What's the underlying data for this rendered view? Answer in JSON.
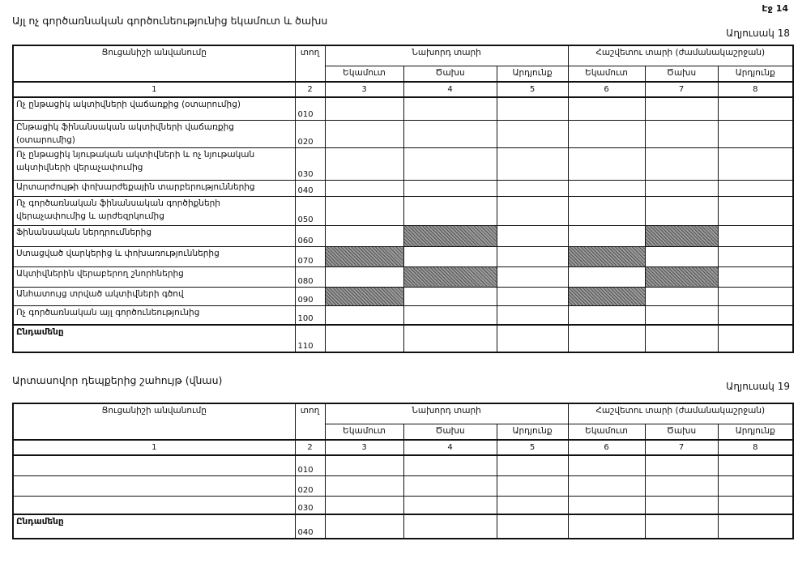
{
  "page_number": "Էջ 14",
  "table18": {
    "title": "Այլ ոչ գործառնական գործունեությունից եկամուտ և ծախս",
    "label": "Աղյուսակ 18",
    "headers": {
      "name": "Ցուցանիշի անվանումը",
      "line": "տող",
      "prev_year": "Նախորդ տարի",
      "report_year": "Հաշվետու տարի (ժամանակաշրջան)",
      "income": "Եկամուտ",
      "expense": "Ծախս",
      "result": "Արդյունք",
      "col_numbers": [
        "1",
        "2",
        "3",
        "4",
        "5",
        "6",
        "7",
        "8"
      ]
    },
    "rows": [
      {
        "name": "Ոչ ընթացիկ ակտիվների վաճառքից (օտարումից)",
        "code": "010",
        "shaded": []
      },
      {
        "name": "Ընթացիկ ֆինանսական ակտիվների վաճառքից (օտարումից)",
        "code": "020",
        "shaded": []
      },
      {
        "name": "Ոչ ընթացիկ նյութական ակտիվների և ոչ նյութական ակտիվների վերաչափումից",
        "code": "030",
        "shaded": []
      },
      {
        "name": "Արտարժույթի փոխարժեքային տարբերություններից",
        "code": "040",
        "shaded": []
      },
      {
        "name": "Ոչ գործառնական ֆինանսական գործիքների վերաչափումից և արժեզրկումից",
        "code": "050",
        "shaded": []
      },
      {
        "name": "Ֆինանսական ներդրումներից",
        "code": "060",
        "shaded": [
          4,
          7
        ]
      },
      {
        "name": "Ստացված վարկերից և փոխառություններից",
        "code": "070",
        "shaded": [
          3,
          6
        ]
      },
      {
        "name": "Ակտիվներին վերաբերող շնորհներից",
        "code": "080",
        "shaded": [
          4,
          7
        ]
      },
      {
        "name": "Անհատույց տրված ակտիվների գծով",
        "code": "090",
        "shaded": [
          3,
          6
        ]
      },
      {
        "name": "Ոչ գործառնական այլ գործունեությունից",
        "code": "100",
        "shaded": []
      },
      {
        "name": "Ընդամենը",
        "code": "110",
        "shaded": []
      }
    ]
  },
  "table19": {
    "title": "Արտասովոր դեպքերից շահույթ (վնաս)",
    "label": "Աղյուսակ 19",
    "headers": {
      "name": "Ցուցանիշի անվանումը",
      "line": "տող",
      "prev_year": "Նախորդ տարի",
      "report_year": "Հաշվետու տարի (ժամանակաշրջան)",
      "income": "Եկամուտ",
      "expense": "Ծախս",
      "result": "Արդյունք",
      "col_numbers": [
        "1",
        "2",
        "3",
        "4",
        "5",
        "6",
        "7",
        "8"
      ]
    },
    "rows": [
      {
        "name": "",
        "code": "010",
        "shaded": []
      },
      {
        "name": "",
        "code": "020",
        "shaded": []
      },
      {
        "name": "",
        "code": "030",
        "shaded": []
      },
      {
        "name": "Ընդամենը",
        "code": "040",
        "shaded": []
      }
    ]
  },
  "colors": {
    "shade": "#7a7a7a",
    "line": "#111111"
  }
}
